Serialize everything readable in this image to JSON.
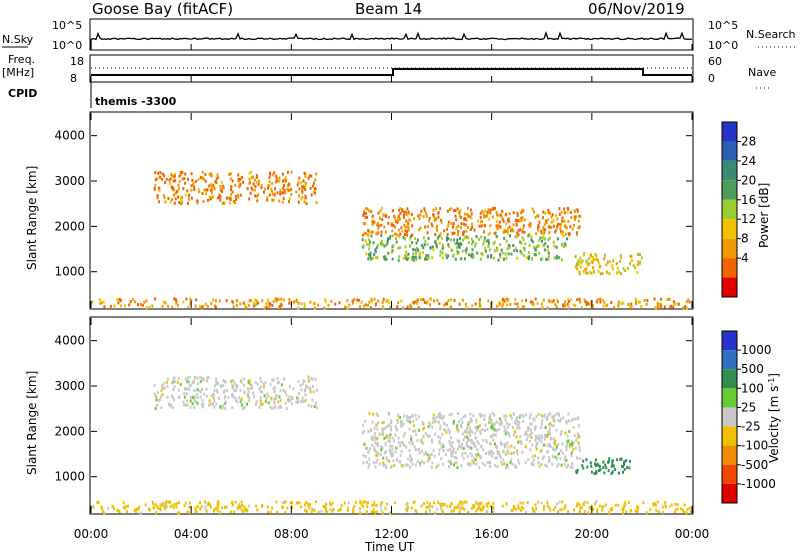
{
  "header": {
    "station": "Goose Bay (fitACF)",
    "beam": "Beam 14",
    "date": "06/Nov/2019"
  },
  "top_panels": {
    "nsky_label": "N.Sky",
    "nsky_ticks": [
      "10^5",
      "10^0"
    ],
    "nsearch_label": "N.Search",
    "freq_label_1": "Freq.",
    "freq_label_2": "[MHz]",
    "freq_ticks": [
      "18",
      "8"
    ],
    "nave_ticks": [
      "60",
      "0"
    ],
    "nave_label": "Nave",
    "cpid_label": "CPID",
    "cpid_text": "themis -3300"
  },
  "chart_data": [
    {
      "type": "heatmap",
      "name": "power",
      "ylabel": "Slant Range [km]",
      "xlabel": "",
      "xlim_hours": [
        0,
        24
      ],
      "ylim": [
        200,
        4500
      ],
      "yticks": [
        "4000",
        "3000",
        "2000",
        "1000"
      ],
      "colorbar": {
        "label": "Power [dB]",
        "ticks": [
          "28",
          "24",
          "20",
          "16",
          "12",
          "8",
          "4"
        ],
        "colors": [
          "#2433c8",
          "#2b5fb0",
          "#3b8a74",
          "#4a9e5a",
          "#9acd32",
          "#f0c000",
          "#f09a00",
          "#f06400",
          "#e00000"
        ]
      },
      "echo_regions": [
        {
          "t_start": 2.5,
          "t_end": 9.0,
          "r_low": 2500,
          "r_high": 3200,
          "power_db": 8
        },
        {
          "t_start": 10.8,
          "t_end": 19.5,
          "r_low": 1800,
          "r_high": 2400,
          "power_db": 8
        },
        {
          "t_start": 10.8,
          "t_end": 19.0,
          "r_low": 1250,
          "r_high": 1800,
          "power_db": 20
        },
        {
          "t_start": 19.3,
          "t_end": 22.0,
          "r_low": 950,
          "r_high": 1400,
          "power_db": 14
        },
        {
          "t_start": 0.0,
          "t_end": 24.0,
          "r_low": 200,
          "r_high": 400,
          "power_db": 10
        }
      ]
    },
    {
      "type": "heatmap",
      "name": "velocity",
      "ylabel": "Slant Range [km]",
      "xlabel": "Time UT",
      "xticks": [
        "00:00",
        "04:00",
        "08:00",
        "12:00",
        "16:00",
        "20:00",
        "00:00"
      ],
      "xlim_hours": [
        0,
        24
      ],
      "ylim": [
        200,
        4500
      ],
      "yticks": [
        "4000",
        "3000",
        "2000",
        "1000"
      ],
      "colorbar": {
        "label": "Velocity [m s",
        "label_sup": "-1",
        "label_end": "]",
        "ticks": [
          "1000",
          "500",
          "100",
          "25",
          "-25",
          "-100",
          "-500",
          "-1000"
        ],
        "colors": [
          "#2433c8",
          "#3070c0",
          "#2f8f4e",
          "#66cc33",
          "#c8c8c8",
          "#f0c000",
          "#f08c00",
          "#f04600",
          "#e00000"
        ]
      },
      "echo_regions": [
        {
          "t_start": 2.5,
          "t_end": 9.0,
          "r_low": 2500,
          "r_high": 3200,
          "velocity": 0
        },
        {
          "t_start": 10.8,
          "t_end": 19.5,
          "r_low": 1200,
          "r_high": 2400,
          "velocity": 0
        },
        {
          "t_start": 19.3,
          "t_end": 21.5,
          "r_low": 1050,
          "r_high": 1400,
          "velocity": 150
        },
        {
          "t_start": 0.0,
          "t_end": 24.0,
          "r_low": 200,
          "r_high": 450,
          "velocity": -50
        }
      ]
    }
  ]
}
